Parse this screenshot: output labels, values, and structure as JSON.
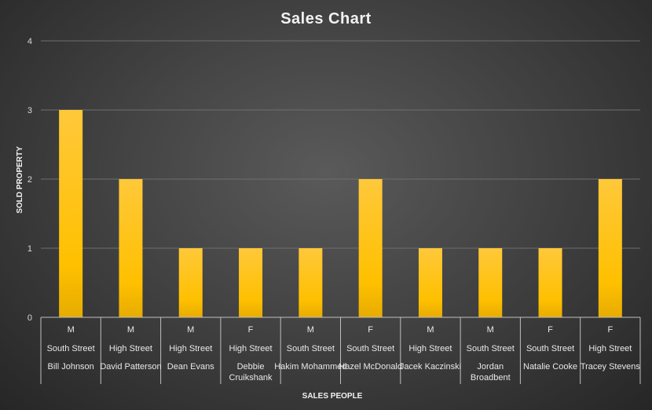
{
  "chart_data": {
    "type": "bar",
    "title": "Sales Chart",
    "xlabel": "SALES PEOPLE",
    "ylabel": "SOLD PROPERTY",
    "ylim": [
      0,
      4
    ],
    "yticks": [
      0,
      1,
      2,
      3,
      4
    ],
    "grid": true,
    "legend": "none",
    "bar_color": "#ffc000",
    "category_levels": [
      [
        "M",
        "M",
        "M",
        "F",
        "M",
        "F",
        "M",
        "M",
        "F",
        "F"
      ],
      [
        "South Street",
        "High Street",
        "High Street",
        "High Street",
        "South Street",
        "South Street",
        "High Street",
        "South Street",
        "South Street",
        "High Street"
      ],
      [
        "Bill Johnson",
        "David Patterson",
        "Dean Evans",
        "Debbie Cruikshank",
        "Hakim Mohammed",
        "Hazel McDonald",
        "Jacek Kaczinski",
        "Jordan Broadbent",
        "Natalie Cooke",
        "Tracey Stevens"
      ]
    ],
    "values": [
      3,
      2,
      1,
      1,
      1,
      2,
      1,
      1,
      1,
      2
    ]
  }
}
